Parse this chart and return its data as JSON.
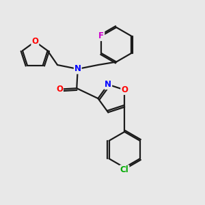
{
  "background_color": "#e8e8e8",
  "bond_color": "#1a1a1a",
  "atom_colors": {
    "O": "#ff0000",
    "N": "#0000ff",
    "F": "#cc00cc",
    "Cl": "#00aa00"
  },
  "lw": 1.6,
  "fontsize": 8.5
}
